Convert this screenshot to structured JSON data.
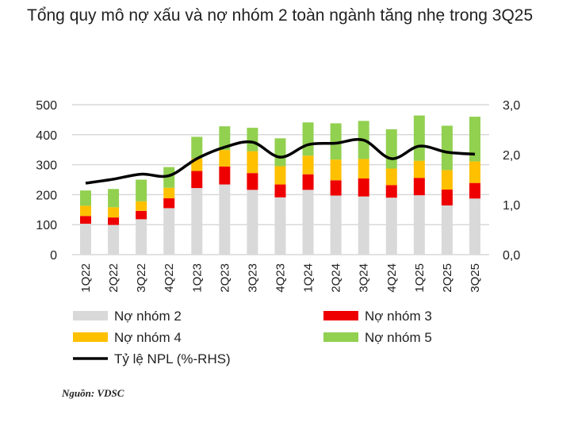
{
  "title": "Tổng quy mô nợ xấu và nợ nhóm 2 toàn ngành tăng nhẹ trong 3Q25",
  "source": "Nguồn: VDSC",
  "chart_data": {
    "type": "bar",
    "stacked": true,
    "title": "Tổng quy mô nợ xấu và nợ nhóm 2 toàn ngành tăng nhẹ trong 3Q25",
    "categories": [
      "1Q22",
      "2Q22",
      "3Q22",
      "4Q22",
      "1Q23",
      "2Q23",
      "3Q23",
      "4Q23",
      "1Q24",
      "2Q24",
      "3Q24",
      "4Q24",
      "1Q25",
      "2Q25",
      "3Q25"
    ],
    "ylim": [
      0,
      500
    ],
    "yticks": [
      "0",
      "100",
      "200",
      "300",
      "400",
      "500"
    ],
    "y2lim": [
      0,
      3
    ],
    "y2ticks": [
      "0,0",
      "1,0",
      "2,0",
      "3,0"
    ],
    "grid": true,
    "legend": "bottom",
    "series": [
      {
        "name": "Nợ nhóm 2",
        "color": "#d9d9d9",
        "values": [
          103,
          99,
          118,
          155,
          222,
          234,
          216,
          191,
          216,
          197,
          194,
          190,
          198,
          164,
          187
        ]
      },
      {
        "name": "Nợ nhóm 3",
        "color": "#ee0000",
        "values": [
          26,
          25,
          28,
          33,
          57,
          60,
          56,
          43,
          52,
          51,
          60,
          42,
          58,
          53,
          52
        ]
      },
      {
        "name": "Nợ nhóm 4",
        "color": "#ffc000",
        "values": [
          34,
          34,
          32,
          35,
          41,
          55,
          73,
          61,
          62,
          69,
          65,
          55,
          57,
          65,
          72
        ]
      },
      {
        "name": "Nợ nhóm 5",
        "color": "#92d050",
        "values": [
          51,
          61,
          72,
          69,
          73,
          79,
          78,
          93,
          111,
          121,
          127,
          131,
          151,
          148,
          149
        ]
      },
      {
        "name": "Tỷ lệ NPL (%-RHS)",
        "type": "line",
        "axis": "right",
        "color": "#000000",
        "values": [
          1.43,
          1.51,
          1.61,
          1.58,
          1.92,
          2.15,
          2.25,
          1.95,
          2.2,
          2.23,
          2.29,
          1.92,
          2.17,
          2.05,
          2.01
        ]
      }
    ]
  }
}
